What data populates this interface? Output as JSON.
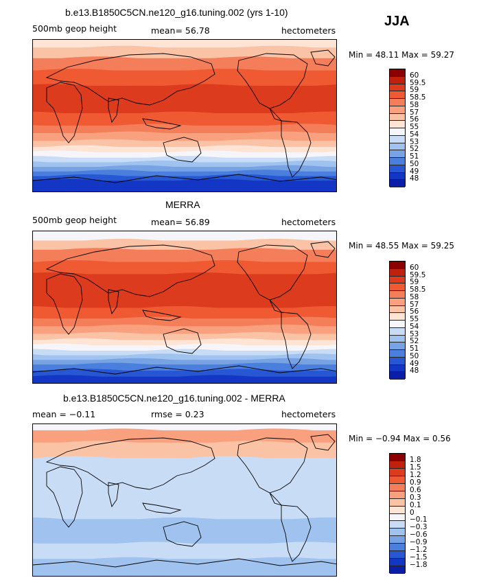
{
  "season": "JJA",
  "panels": [
    {
      "title": "b.e13.B1850C5CN.ne120_g16.tuning.002 (yrs 1-10)",
      "variable": "500mb geop height",
      "stat": "mean=   56.78",
      "units": "hectometers",
      "minmax": "Min =  48.11  Max =  59.27",
      "colorbar_labels": [
        "60",
        "59.5",
        "59",
        "58.5",
        "58",
        "57",
        "56",
        "55",
        "54",
        "53",
        "52",
        "51",
        "50",
        "49",
        "48"
      ],
      "colors": [
        "#8b0000",
        "#c0200e",
        "#dc3b1e",
        "#ef5a33",
        "#f47e5a",
        "#f9a07e",
        "#fbc3a6",
        "#fde4d5",
        "#f5f5fa",
        "#c9dcf5",
        "#a0c2ee",
        "#77a3e4",
        "#4a7fde",
        "#2757d3",
        "#1436c4",
        "#0a1ea8"
      ],
      "bands": [
        {
          "from": 0.0,
          "to": 0.05,
          "c": 7
        },
        {
          "from": 0.05,
          "to": 0.12,
          "c": 6
        },
        {
          "from": 0.12,
          "to": 0.2,
          "c": 4
        },
        {
          "from": 0.2,
          "to": 0.3,
          "c": 3
        },
        {
          "from": 0.3,
          "to": 0.48,
          "c": 2
        },
        {
          "from": 0.48,
          "to": 0.56,
          "c": 3
        },
        {
          "from": 0.56,
          "to": 0.61,
          "c": 4
        },
        {
          "from": 0.61,
          "to": 0.66,
          "c": 5
        },
        {
          "from": 0.66,
          "to": 0.7,
          "c": 6
        },
        {
          "from": 0.7,
          "to": 0.735,
          "c": 7
        },
        {
          "from": 0.735,
          "to": 0.77,
          "c": 8
        },
        {
          "from": 0.77,
          "to": 0.8,
          "c": 9
        },
        {
          "from": 0.8,
          "to": 0.83,
          "c": 10
        },
        {
          "from": 0.83,
          "to": 0.86,
          "c": 11
        },
        {
          "from": 0.86,
          "to": 0.89,
          "c": 12
        },
        {
          "from": 0.89,
          "to": 0.92,
          "c": 13
        },
        {
          "from": 0.92,
          "to": 1.0,
          "c": 14
        }
      ]
    },
    {
      "title": "MERRA",
      "variable": "500mb geop height",
      "stat": "mean=   56.89",
      "units": "hectometers",
      "minmax": "Min =  48.55  Max =  59.25",
      "colorbar_labels": [
        "60",
        "59.5",
        "59",
        "58.5",
        "58",
        "57",
        "56",
        "55",
        "54",
        "53",
        "52",
        "51",
        "50",
        "49",
        "48"
      ],
      "colors": [
        "#8b0000",
        "#c0200e",
        "#dc3b1e",
        "#ef5a33",
        "#f47e5a",
        "#f9a07e",
        "#fbc3a6",
        "#fde4d5",
        "#f5f5fa",
        "#c9dcf5",
        "#a0c2ee",
        "#77a3e4",
        "#4a7fde",
        "#2757d3",
        "#1436c4",
        "#0a1ea8"
      ],
      "bands": [
        {
          "from": 0.0,
          "to": 0.06,
          "c": 8
        },
        {
          "from": 0.06,
          "to": 0.12,
          "c": 6
        },
        {
          "from": 0.12,
          "to": 0.2,
          "c": 4
        },
        {
          "from": 0.2,
          "to": 0.28,
          "c": 3
        },
        {
          "from": 0.28,
          "to": 0.5,
          "c": 2
        },
        {
          "from": 0.5,
          "to": 0.57,
          "c": 3
        },
        {
          "from": 0.57,
          "to": 0.62,
          "c": 4
        },
        {
          "from": 0.62,
          "to": 0.67,
          "c": 5
        },
        {
          "from": 0.67,
          "to": 0.71,
          "c": 6
        },
        {
          "from": 0.71,
          "to": 0.745,
          "c": 7
        },
        {
          "from": 0.745,
          "to": 0.78,
          "c": 8
        },
        {
          "from": 0.78,
          "to": 0.81,
          "c": 9
        },
        {
          "from": 0.81,
          "to": 0.84,
          "c": 10
        },
        {
          "from": 0.84,
          "to": 0.87,
          "c": 11
        },
        {
          "from": 0.87,
          "to": 0.91,
          "c": 12
        },
        {
          "from": 0.91,
          "to": 0.95,
          "c": 13
        },
        {
          "from": 0.95,
          "to": 1.0,
          "c": 14
        }
      ]
    },
    {
      "title": "b.e13.B1850C5CN.ne120_g16.tuning.002 - MERRA",
      "variable": "mean =   −0.11",
      "stat": "rmse =     0.23",
      "units": "hectometers",
      "minmax": "Min =  −0.94  Max =    0.56",
      "colorbar_labels": [
        "1.8",
        "1.5",
        "1.2",
        "0.9",
        "0.6",
        "0.3",
        "0.1",
        "0",
        "−0.1",
        "−0.3",
        "−0.6",
        "−0.9",
        "−1.2",
        "−1.5",
        "−1.8"
      ],
      "colors": [
        "#8b0000",
        "#c0200e",
        "#dc3b1e",
        "#ef5a33",
        "#f47e5a",
        "#f9a07e",
        "#fbc3a6",
        "#fde4d5",
        "#f5f5fa",
        "#c9dcf5",
        "#a0c2ee",
        "#77a3e4",
        "#4a7fde",
        "#2757d3",
        "#1436c4",
        "#0a1ea8"
      ],
      "bands": [
        {
          "from": 0.0,
          "to": 0.04,
          "c": 8
        },
        {
          "from": 0.04,
          "to": 0.12,
          "c": 5
        },
        {
          "from": 0.12,
          "to": 0.22,
          "c": 6
        },
        {
          "from": 0.22,
          "to": 0.3,
          "c": 9
        },
        {
          "from": 0.3,
          "to": 0.62,
          "c": 9
        },
        {
          "from": 0.62,
          "to": 0.78,
          "c": 10
        },
        {
          "from": 0.78,
          "to": 0.88,
          "c": 9
        },
        {
          "from": 0.88,
          "to": 1.0,
          "c": 10
        }
      ]
    }
  ]
}
